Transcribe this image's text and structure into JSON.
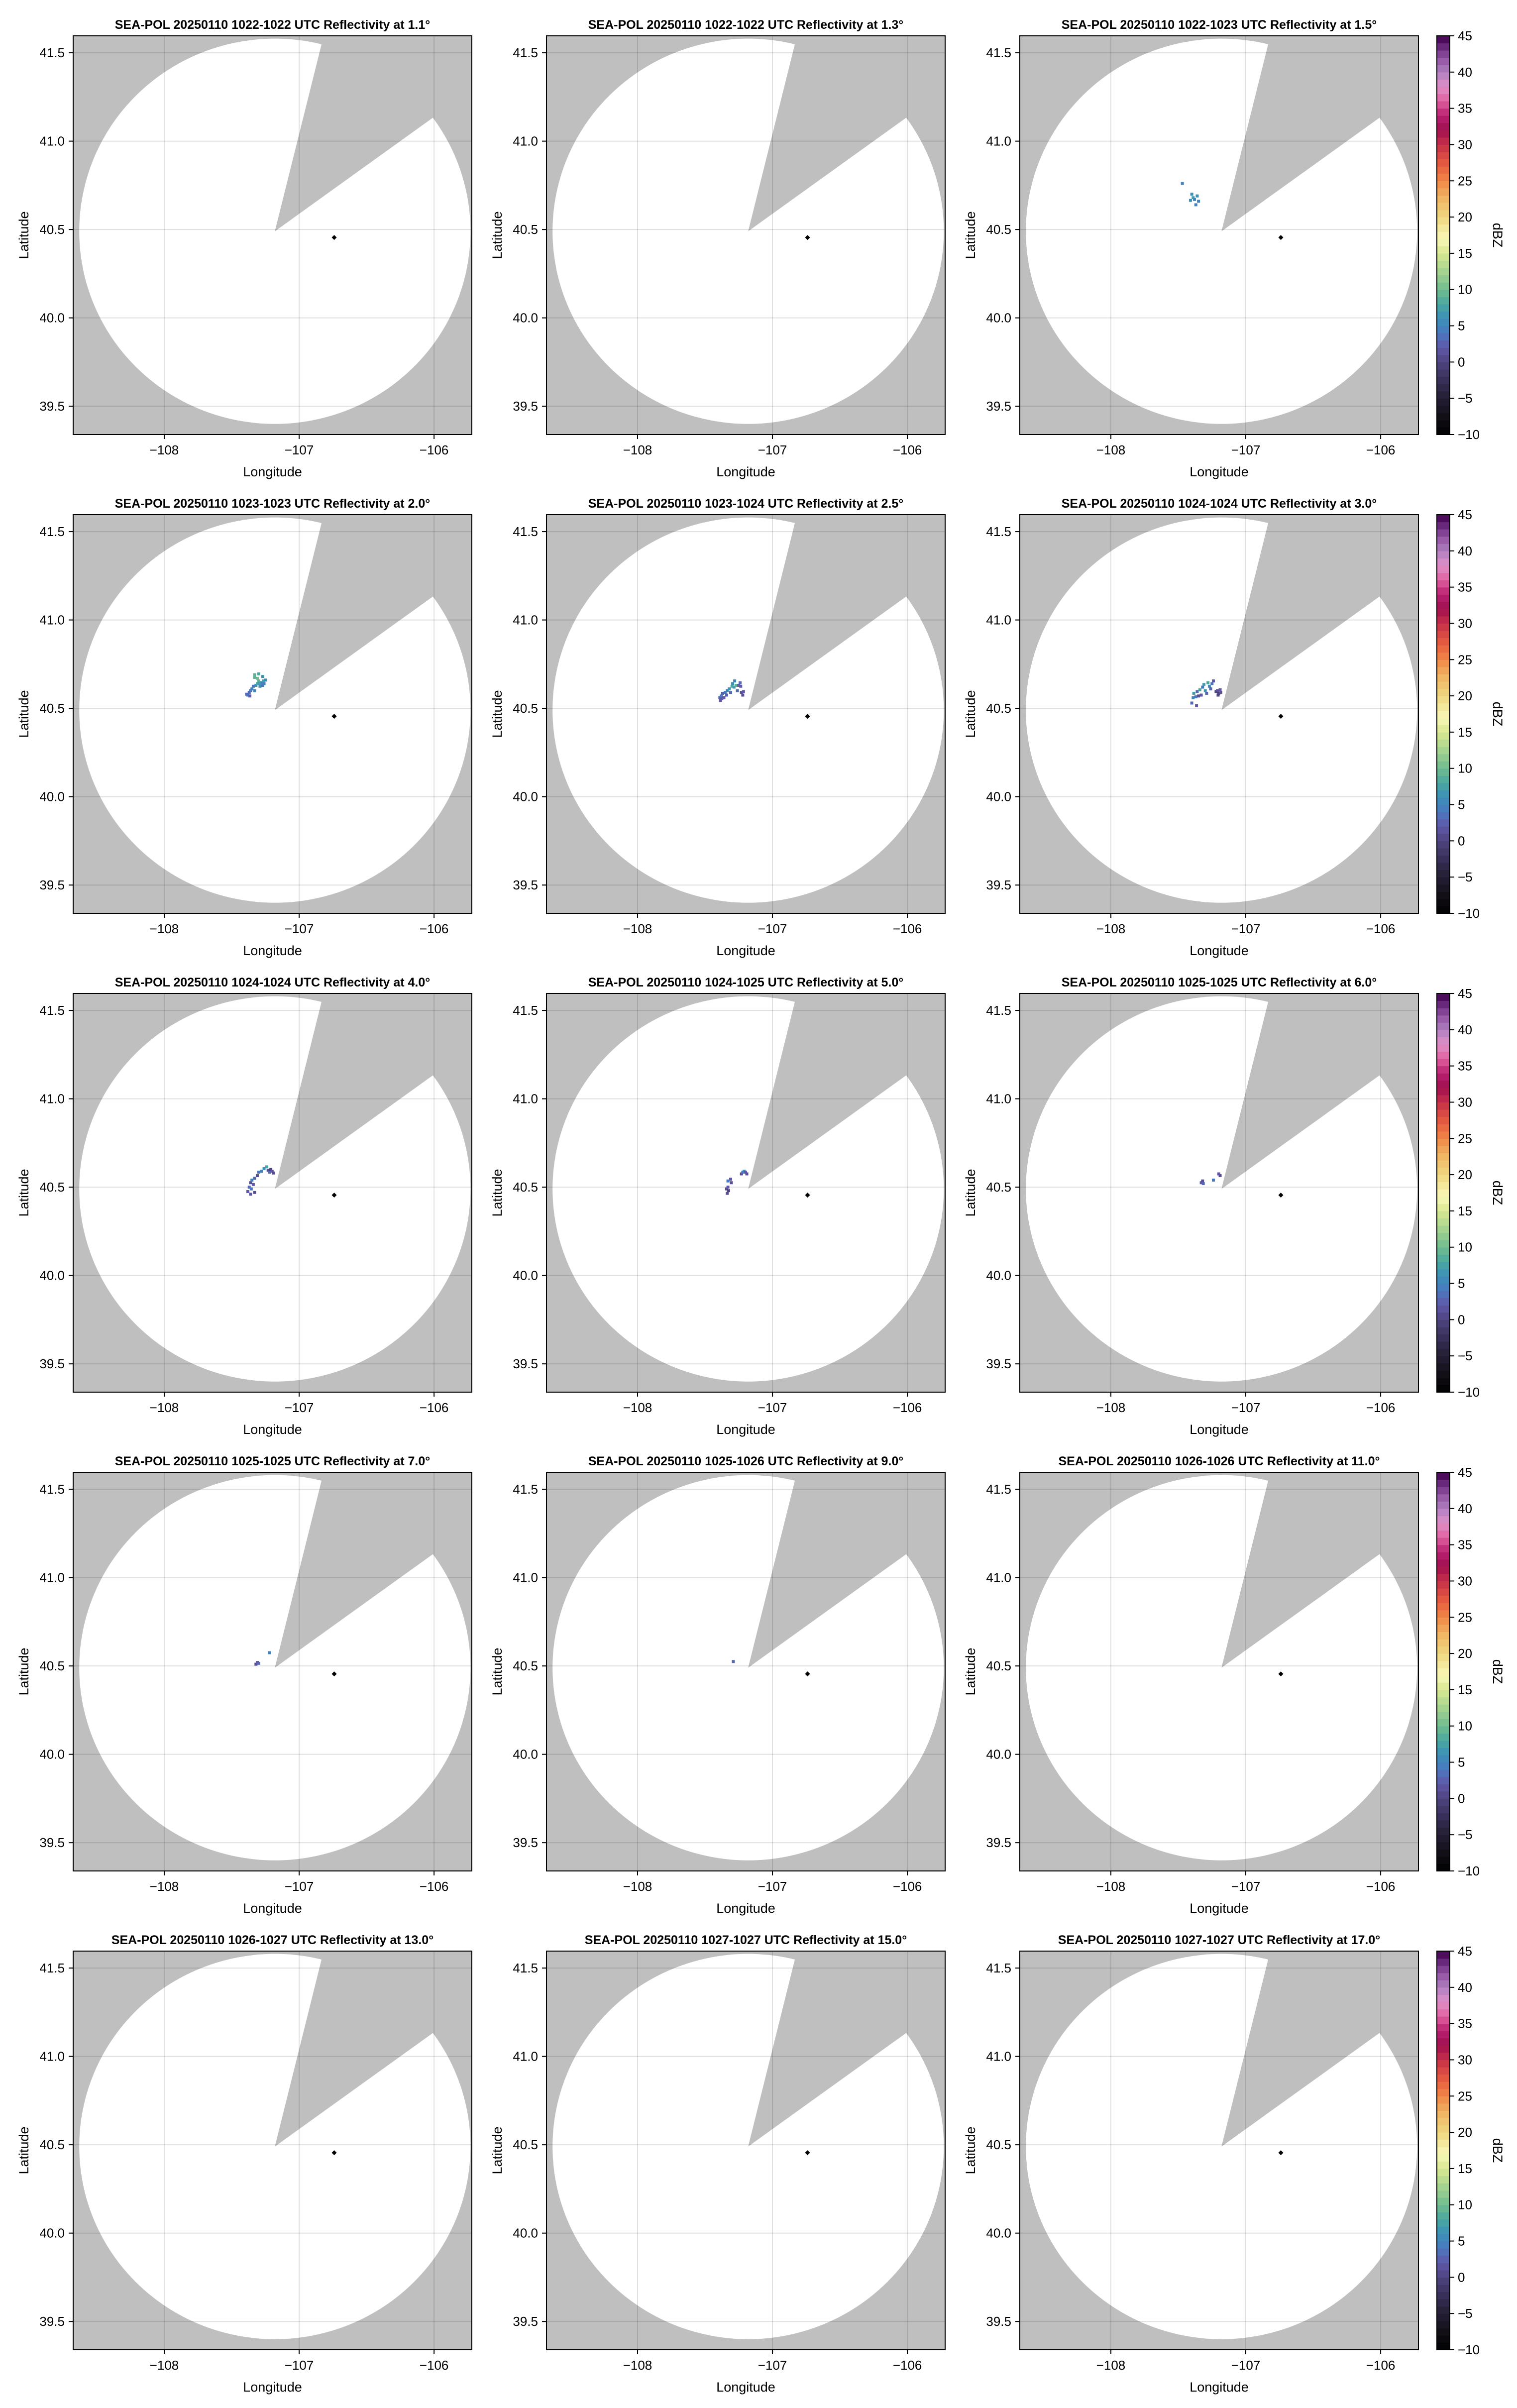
{
  "chart_data": {
    "type": "heatmap",
    "layout": "5 rows x 3 columns of radar PPI panels",
    "xlabel": "Longitude",
    "ylabel": "Latitude",
    "xlim": [
      -108.675,
      -105.72
    ],
    "ylim": [
      39.34,
      41.596
    ],
    "xticks": [
      -108,
      -107,
      -106
    ],
    "xtick_labels": [
      "−108",
      "−107",
      "−106"
    ],
    "yticks": [
      39.5,
      40.0,
      40.5,
      41.0,
      41.5
    ],
    "ytick_labels": [
      "39.5",
      "40.0",
      "40.5",
      "41.0",
      "41.5"
    ],
    "grid": true,
    "radar_center": [
      -107.18,
      40.49
    ],
    "coverage_radius_deg": {
      "lon": 1.45,
      "lat": 1.09
    },
    "blocked_sector_edges": [
      [
        -106.84,
        41.53
      ],
      [
        -106.05,
        41.11
      ]
    ],
    "marker": {
      "lon": -106.74,
      "lat": 40.455,
      "color": "#000000"
    },
    "colors": {
      "no_data": "#bfbfbf",
      "coverage": "#ffffff",
      "grid": "#dddddd"
    },
    "colorbar": {
      "label": "dBZ",
      "range": [
        -10,
        45
      ],
      "ticks": [
        -10,
        -5,
        0,
        5,
        10,
        15,
        20,
        25,
        30,
        35,
        40,
        45
      ],
      "tick_labels": [
        "−10",
        "−5",
        "0",
        "5",
        "10",
        "15",
        "20",
        "25",
        "30",
        "35",
        "40",
        "45"
      ],
      "stops": [
        [
          -10,
          "#000000"
        ],
        [
          -7,
          "#15121c"
        ],
        [
          -4,
          "#2a2440"
        ],
        [
          0,
          "#4f4480"
        ],
        [
          2,
          "#6058a8"
        ],
        [
          4,
          "#4a78c0"
        ],
        [
          6,
          "#3d90b8"
        ],
        [
          8,
          "#4aa8a0"
        ],
        [
          10,
          "#70bc90"
        ],
        [
          13,
          "#b0d890"
        ],
        [
          15,
          "#d8e890"
        ],
        [
          17,
          "#f8f8b8"
        ],
        [
          20,
          "#f0d880"
        ],
        [
          23,
          "#f0b060"
        ],
        [
          25,
          "#f08848"
        ],
        [
          27,
          "#e86040"
        ],
        [
          30,
          "#c83048"
        ],
        [
          32,
          "#a01050"
        ],
        [
          34,
          "#b82070"
        ],
        [
          36,
          "#e060a0"
        ],
        [
          38,
          "#e090c8"
        ],
        [
          40,
          "#b080c0"
        ],
        [
          42,
          "#9050a0"
        ],
        [
          44,
          "#5a1a70"
        ],
        [
          45,
          "#400048"
        ]
      ]
    },
    "panels": [
      {
        "title": "SEA-POL 20250110 1022-1022 UTC Reflectivity at 1.1°",
        "echoes": []
      },
      {
        "title": "SEA-POL 20250110 1022-1022 UTC Reflectivity at 1.3°",
        "echoes": []
      },
      {
        "title": "SEA-POL 20250110 1022-1023 UTC Reflectivity at 1.5°",
        "colorbar": true,
        "echoes": [
          [
            -107.47,
            40.76,
            5
          ],
          [
            -107.4,
            40.7,
            6
          ],
          [
            -107.39,
            40.68,
            7
          ],
          [
            -107.38,
            40.67,
            5
          ],
          [
            -107.36,
            40.69,
            6
          ],
          [
            -107.35,
            40.66,
            5
          ],
          [
            -107.41,
            40.665,
            6
          ],
          [
            -107.37,
            40.64,
            5
          ]
        ]
      },
      {
        "title": "SEA-POL 20250110 1023-1023 UTC Reflectivity at 2.0°",
        "echoes": [
          [
            -107.39,
            40.58,
            3
          ],
          [
            -107.38,
            40.575,
            4
          ],
          [
            -107.37,
            40.59,
            3
          ],
          [
            -107.365,
            40.57,
            2
          ],
          [
            -107.36,
            40.6,
            4
          ],
          [
            -107.35,
            40.61,
            5
          ],
          [
            -107.34,
            40.625,
            4
          ],
          [
            -107.33,
            40.6,
            5
          ],
          [
            -107.32,
            40.63,
            6
          ],
          [
            -107.31,
            40.64,
            8
          ],
          [
            -107.3,
            40.655,
            9
          ],
          [
            -107.295,
            40.64,
            7
          ],
          [
            -107.29,
            40.625,
            6
          ],
          [
            -107.28,
            40.645,
            5
          ],
          [
            -107.27,
            40.63,
            4
          ],
          [
            -107.265,
            40.655,
            7
          ],
          [
            -107.31,
            40.67,
            10
          ],
          [
            -107.33,
            40.675,
            9
          ],
          [
            -107.3,
            40.695,
            8
          ],
          [
            -107.27,
            40.68,
            6
          ],
          [
            -107.26,
            40.64,
            5
          ],
          [
            -107.25,
            40.66,
            6
          ],
          [
            -107.33,
            40.69,
            9
          ]
        ]
      },
      {
        "title": "SEA-POL 20250110 1023-1024 UTC Reflectivity at 2.5°",
        "echoes": [
          [
            -107.39,
            40.56,
            3
          ],
          [
            -107.38,
            40.57,
            4
          ],
          [
            -107.375,
            40.555,
            2
          ],
          [
            -107.37,
            40.585,
            3
          ],
          [
            -107.36,
            40.56,
            2
          ],
          [
            -107.35,
            40.59,
            4
          ],
          [
            -107.34,
            40.575,
            3
          ],
          [
            -107.335,
            40.6,
            5
          ],
          [
            -107.32,
            40.61,
            6
          ],
          [
            -107.31,
            40.59,
            3
          ],
          [
            -107.3,
            40.625,
            8
          ],
          [
            -107.295,
            40.64,
            6
          ],
          [
            -107.285,
            40.62,
            7
          ],
          [
            -107.28,
            40.655,
            5
          ],
          [
            -107.27,
            40.63,
            9
          ],
          [
            -107.26,
            40.6,
            3
          ],
          [
            -107.25,
            40.63,
            2
          ],
          [
            -107.24,
            40.645,
            3
          ],
          [
            -107.235,
            40.625,
            2
          ],
          [
            -107.23,
            40.59,
            1
          ],
          [
            -107.215,
            40.595,
            2
          ],
          [
            -107.22,
            40.575,
            1
          ],
          [
            -107.385,
            40.545,
            2
          ]
        ]
      },
      {
        "title": "SEA-POL 20250110 1024-1024 UTC Reflectivity at 3.0°",
        "colorbar": true,
        "echoes": [
          [
            -107.4,
            40.53,
            3
          ],
          [
            -107.39,
            40.56,
            5
          ],
          [
            -107.385,
            40.585,
            7
          ],
          [
            -107.37,
            40.565,
            4
          ],
          [
            -107.36,
            40.595,
            3
          ],
          [
            -107.35,
            40.57,
            1
          ],
          [
            -107.34,
            40.605,
            8
          ],
          [
            -107.33,
            40.575,
            2
          ],
          [
            -107.32,
            40.62,
            4
          ],
          [
            -107.31,
            40.635,
            7
          ],
          [
            -107.3,
            40.6,
            6
          ],
          [
            -107.29,
            40.585,
            3
          ],
          [
            -107.28,
            40.645,
            8
          ],
          [
            -107.27,
            40.625,
            5
          ],
          [
            -107.26,
            40.61,
            3
          ],
          [
            -107.25,
            40.64,
            4
          ],
          [
            -107.24,
            40.655,
            2
          ],
          [
            -107.22,
            40.595,
            0
          ],
          [
            -107.21,
            40.6,
            1
          ],
          [
            -107.2,
            40.585,
            -1
          ],
          [
            -107.19,
            40.605,
            2
          ],
          [
            -107.205,
            40.575,
            0
          ],
          [
            -107.185,
            40.59,
            1
          ],
          [
            -107.365,
            40.515,
            2
          ]
        ]
      },
      {
        "title": "SEA-POL 20250110 1024-1024 UTC Reflectivity at 4.0°",
        "echoes": [
          [
            -107.38,
            40.475,
            2
          ],
          [
            -107.37,
            40.5,
            3
          ],
          [
            -107.36,
            40.525,
            1
          ],
          [
            -107.355,
            40.49,
            4
          ],
          [
            -107.35,
            40.54,
            5
          ],
          [
            -107.34,
            40.515,
            2
          ],
          [
            -107.33,
            40.55,
            3
          ],
          [
            -107.31,
            40.565,
            1
          ],
          [
            -107.3,
            40.585,
            4
          ],
          [
            -107.28,
            40.59,
            5
          ],
          [
            -107.26,
            40.605,
            6
          ],
          [
            -107.23,
            40.595,
            1
          ],
          [
            -107.22,
            40.585,
            3
          ],
          [
            -107.21,
            40.6,
            0
          ],
          [
            -107.2,
            40.59,
            2
          ],
          [
            -107.19,
            40.58,
            1
          ],
          [
            -107.24,
            40.615,
            8
          ],
          [
            -107.36,
            40.46,
            2
          ],
          [
            -107.33,
            40.47,
            1
          ]
        ]
      },
      {
        "title": "SEA-POL 20250110 1024-1025 UTC Reflectivity at 5.0°",
        "echoes": [
          [
            -107.23,
            40.575,
            1
          ],
          [
            -107.22,
            40.585,
            4
          ],
          [
            -107.21,
            40.59,
            6
          ],
          [
            -107.2,
            40.585,
            2
          ],
          [
            -107.19,
            40.575,
            1
          ],
          [
            -107.34,
            40.49,
            1
          ],
          [
            -107.33,
            40.5,
            2
          ],
          [
            -107.325,
            40.48,
            0
          ],
          [
            -107.335,
            40.465,
            1
          ],
          [
            -107.33,
            40.535,
            4
          ],
          [
            -107.31,
            40.545,
            2
          ],
          [
            -107.305,
            40.525,
            1
          ]
        ]
      },
      {
        "title": "SEA-POL 20250110 1025-1025 UTC Reflectivity at 6.0°",
        "colorbar": true,
        "echoes": [
          [
            -107.33,
            40.525,
            2
          ],
          [
            -107.32,
            40.535,
            1
          ],
          [
            -107.315,
            40.52,
            3
          ],
          [
            -107.2,
            40.575,
            2
          ],
          [
            -107.19,
            40.565,
            1
          ],
          [
            -107.24,
            40.54,
            4
          ]
        ]
      },
      {
        "title": "SEA-POL 20250110 1025-1025 UTC Reflectivity at 7.0°",
        "echoes": [
          [
            -107.32,
            40.51,
            1
          ],
          [
            -107.31,
            40.52,
            2
          ],
          [
            -107.3,
            40.515,
            3
          ],
          [
            -107.22,
            40.575,
            5
          ]
        ]
      },
      {
        "title": "SEA-POL 20250110 1025-1026 UTC Reflectivity at 9.0°",
        "echoes": [
          [
            -107.29,
            40.525,
            3
          ]
        ]
      },
      {
        "title": "SEA-POL 20250110 1026-1026 UTC Reflectivity at 11.0°",
        "colorbar": true,
        "echoes": []
      },
      {
        "title": "SEA-POL 20250110 1026-1027 UTC Reflectivity at 13.0°",
        "echoes": []
      },
      {
        "title": "SEA-POL 20250110 1027-1027 UTC Reflectivity at 15.0°",
        "echoes": []
      },
      {
        "title": "SEA-POL 20250110 1027-1027 UTC Reflectivity at 17.0°",
        "colorbar": true,
        "echoes": []
      }
    ]
  }
}
